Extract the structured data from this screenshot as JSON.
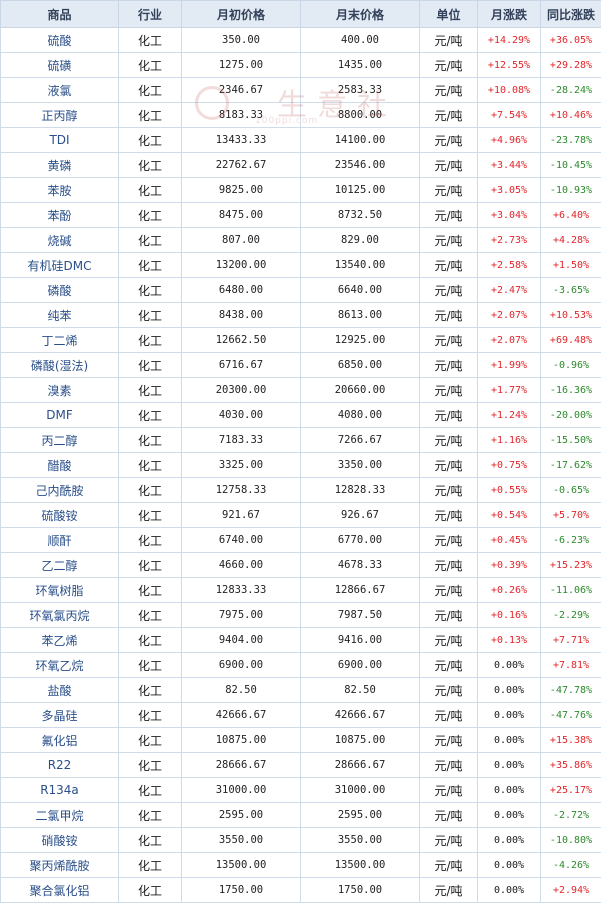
{
  "headers": [
    "商品",
    "行业",
    "月初价格",
    "月末价格",
    "单位",
    "月涨跌",
    "同比涨跌"
  ],
  "watermark": {
    "text": "生意社",
    "url": "100ppi.com"
  },
  "rows": [
    {
      "name": "硫酸",
      "industry": "化工",
      "start": "350.00",
      "end": "400.00",
      "unit": "元/吨",
      "mom": "+14.29%",
      "yoy": "+36.05%"
    },
    {
      "name": "硫磺",
      "industry": "化工",
      "start": "1275.00",
      "end": "1435.00",
      "unit": "元/吨",
      "mom": "+12.55%",
      "yoy": "+29.28%"
    },
    {
      "name": "液氯",
      "industry": "化工",
      "start": "2346.67",
      "end": "2583.33",
      "unit": "元/吨",
      "mom": "+10.08%",
      "yoy": "-28.24%"
    },
    {
      "name": "正丙醇",
      "industry": "化工",
      "start": "8183.33",
      "end": "8800.00",
      "unit": "元/吨",
      "mom": "+7.54%",
      "yoy": "+10.46%"
    },
    {
      "name": "TDI",
      "industry": "化工",
      "start": "13433.33",
      "end": "14100.00",
      "unit": "元/吨",
      "mom": "+4.96%",
      "yoy": "-23.78%"
    },
    {
      "name": "黄磷",
      "industry": "化工",
      "start": "22762.67",
      "end": "23546.00",
      "unit": "元/吨",
      "mom": "+3.44%",
      "yoy": "-10.45%"
    },
    {
      "name": "苯胺",
      "industry": "化工",
      "start": "9825.00",
      "end": "10125.00",
      "unit": "元/吨",
      "mom": "+3.05%",
      "yoy": "-10.93%"
    },
    {
      "name": "苯酚",
      "industry": "化工",
      "start": "8475.00",
      "end": "8732.50",
      "unit": "元/吨",
      "mom": "+3.04%",
      "yoy": "+6.40%"
    },
    {
      "name": "烧碱",
      "industry": "化工",
      "start": "807.00",
      "end": "829.00",
      "unit": "元/吨",
      "mom": "+2.73%",
      "yoy": "+4.28%"
    },
    {
      "name": "有机硅DMC",
      "industry": "化工",
      "start": "13200.00",
      "end": "13540.00",
      "unit": "元/吨",
      "mom": "+2.58%",
      "yoy": "+1.50%"
    },
    {
      "name": "磷酸",
      "industry": "化工",
      "start": "6480.00",
      "end": "6640.00",
      "unit": "元/吨",
      "mom": "+2.47%",
      "yoy": "-3.65%"
    },
    {
      "name": "纯苯",
      "industry": "化工",
      "start": "8438.00",
      "end": "8613.00",
      "unit": "元/吨",
      "mom": "+2.07%",
      "yoy": "+10.53%"
    },
    {
      "name": "丁二烯",
      "industry": "化工",
      "start": "12662.50",
      "end": "12925.00",
      "unit": "元/吨",
      "mom": "+2.07%",
      "yoy": "+69.48%"
    },
    {
      "name": "磷酸(湿法)",
      "industry": "化工",
      "start": "6716.67",
      "end": "6850.00",
      "unit": "元/吨",
      "mom": "+1.99%",
      "yoy": "-0.96%"
    },
    {
      "name": "溴素",
      "industry": "化工",
      "start": "20300.00",
      "end": "20660.00",
      "unit": "元/吨",
      "mom": "+1.77%",
      "yoy": "-16.36%"
    },
    {
      "name": "DMF",
      "industry": "化工",
      "start": "4030.00",
      "end": "4080.00",
      "unit": "元/吨",
      "mom": "+1.24%",
      "yoy": "-20.00%"
    },
    {
      "name": "丙二醇",
      "industry": "化工",
      "start": "7183.33",
      "end": "7266.67",
      "unit": "元/吨",
      "mom": "+1.16%",
      "yoy": "-15.50%"
    },
    {
      "name": "醋酸",
      "industry": "化工",
      "start": "3325.00",
      "end": "3350.00",
      "unit": "元/吨",
      "mom": "+0.75%",
      "yoy": "-17.62%"
    },
    {
      "name": "己内酰胺",
      "industry": "化工",
      "start": "12758.33",
      "end": "12828.33",
      "unit": "元/吨",
      "mom": "+0.55%",
      "yoy": "-0.65%"
    },
    {
      "name": "硫酸铵",
      "industry": "化工",
      "start": "921.67",
      "end": "926.67",
      "unit": "元/吨",
      "mom": "+0.54%",
      "yoy": "+5.70%"
    },
    {
      "name": "顺酐",
      "industry": "化工",
      "start": "6740.00",
      "end": "6770.00",
      "unit": "元/吨",
      "mom": "+0.45%",
      "yoy": "-6.23%"
    },
    {
      "name": "乙二醇",
      "industry": "化工",
      "start": "4660.00",
      "end": "4678.33",
      "unit": "元/吨",
      "mom": "+0.39%",
      "yoy": "+15.23%"
    },
    {
      "name": "环氧树脂",
      "industry": "化工",
      "start": "12833.33",
      "end": "12866.67",
      "unit": "元/吨",
      "mom": "+0.26%",
      "yoy": "-11.06%"
    },
    {
      "name": "环氧氯丙烷",
      "industry": "化工",
      "start": "7975.00",
      "end": "7987.50",
      "unit": "元/吨",
      "mom": "+0.16%",
      "yoy": "-2.29%"
    },
    {
      "name": "苯乙烯",
      "industry": "化工",
      "start": "9404.00",
      "end": "9416.00",
      "unit": "元/吨",
      "mom": "+0.13%",
      "yoy": "+7.71%"
    },
    {
      "name": "环氧乙烷",
      "industry": "化工",
      "start": "6900.00",
      "end": "6900.00",
      "unit": "元/吨",
      "mom": "0.00%",
      "yoy": "+7.81%"
    },
    {
      "name": "盐酸",
      "industry": "化工",
      "start": "82.50",
      "end": "82.50",
      "unit": "元/吨",
      "mom": "0.00%",
      "yoy": "-47.78%"
    },
    {
      "name": "多晶硅",
      "industry": "化工",
      "start": "42666.67",
      "end": "42666.67",
      "unit": "元/吨",
      "mom": "0.00%",
      "yoy": "-47.76%"
    },
    {
      "name": "氟化铝",
      "industry": "化工",
      "start": "10875.00",
      "end": "10875.00",
      "unit": "元/吨",
      "mom": "0.00%",
      "yoy": "+15.38%"
    },
    {
      "name": "R22",
      "industry": "化工",
      "start": "28666.67",
      "end": "28666.67",
      "unit": "元/吨",
      "mom": "0.00%",
      "yoy": "+35.86%"
    },
    {
      "name": "R134a",
      "industry": "化工",
      "start": "31000.00",
      "end": "31000.00",
      "unit": "元/吨",
      "mom": "0.00%",
      "yoy": "+25.17%"
    },
    {
      "name": "二氯甲烷",
      "industry": "化工",
      "start": "2595.00",
      "end": "2595.00",
      "unit": "元/吨",
      "mom": "0.00%",
      "yoy": "-2.72%"
    },
    {
      "name": "硝酸铵",
      "industry": "化工",
      "start": "3550.00",
      "end": "3550.00",
      "unit": "元/吨",
      "mom": "0.00%",
      "yoy": "-10.80%"
    },
    {
      "name": "聚丙烯酰胺",
      "industry": "化工",
      "start": "13500.00",
      "end": "13500.00",
      "unit": "元/吨",
      "mom": "0.00%",
      "yoy": "-4.26%"
    },
    {
      "name": "聚合氯化铝",
      "industry": "化工",
      "start": "1750.00",
      "end": "1750.00",
      "unit": "元/吨",
      "mom": "0.00%",
      "yoy": "+2.94%"
    }
  ]
}
